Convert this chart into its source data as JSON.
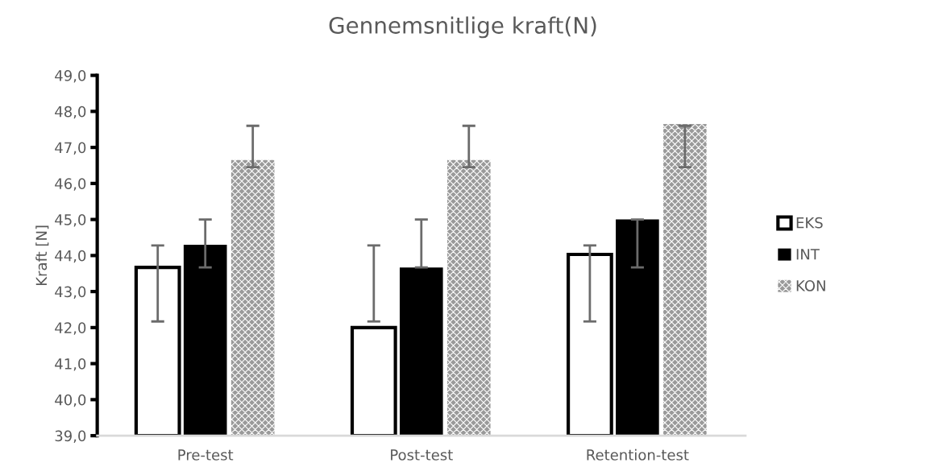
{
  "chart_data": {
    "type": "bar",
    "title": "Gennemsnitlige kraft(N)",
    "ylabel": "Kraft [N]",
    "categories": [
      "Pre-test",
      "Post-test",
      "Retention-test"
    ],
    "series": [
      {
        "name": "EKS",
        "color": "#ffffff",
        "values": [
          43.67,
          42.0,
          44.03
        ],
        "errors": [
          [
            42.17,
            44.28
          ],
          [
            42.17,
            44.28
          ],
          [
            42.17,
            44.28
          ]
        ]
      },
      {
        "name": "INT",
        "color": "#000000",
        "values": [
          44.3,
          43.67,
          45.0
        ],
        "errors": [
          [
            43.67,
            45.0
          ],
          [
            43.67,
            45.0
          ],
          [
            43.67,
            45.0
          ]
        ]
      },
      {
        "name": "KON",
        "color": "#9a9a9a",
        "values": [
          46.65,
          46.65,
          47.65
        ],
        "errors": [
          [
            46.45,
            47.6
          ],
          [
            46.45,
            47.6
          ],
          [
            46.45,
            47.6
          ]
        ]
      }
    ],
    "ylim": [
      39,
      49
    ],
    "yticks": [
      {
        "value": 39,
        "label": "39,0"
      },
      {
        "value": 40,
        "label": "40,0"
      },
      {
        "value": 41,
        "label": "41,0"
      },
      {
        "value": 42,
        "label": "42,0"
      },
      {
        "value": 43,
        "label": "43,0"
      },
      {
        "value": 44,
        "label": "44,0"
      },
      {
        "value": 45,
        "label": "45,0"
      },
      {
        "value": 46,
        "label": "46,0"
      },
      {
        "value": 47,
        "label": "47,0"
      },
      {
        "value": 48,
        "label": "48,0"
      },
      {
        "value": 49,
        "label": "49,0"
      }
    ],
    "grid": false,
    "legend": "right"
  }
}
